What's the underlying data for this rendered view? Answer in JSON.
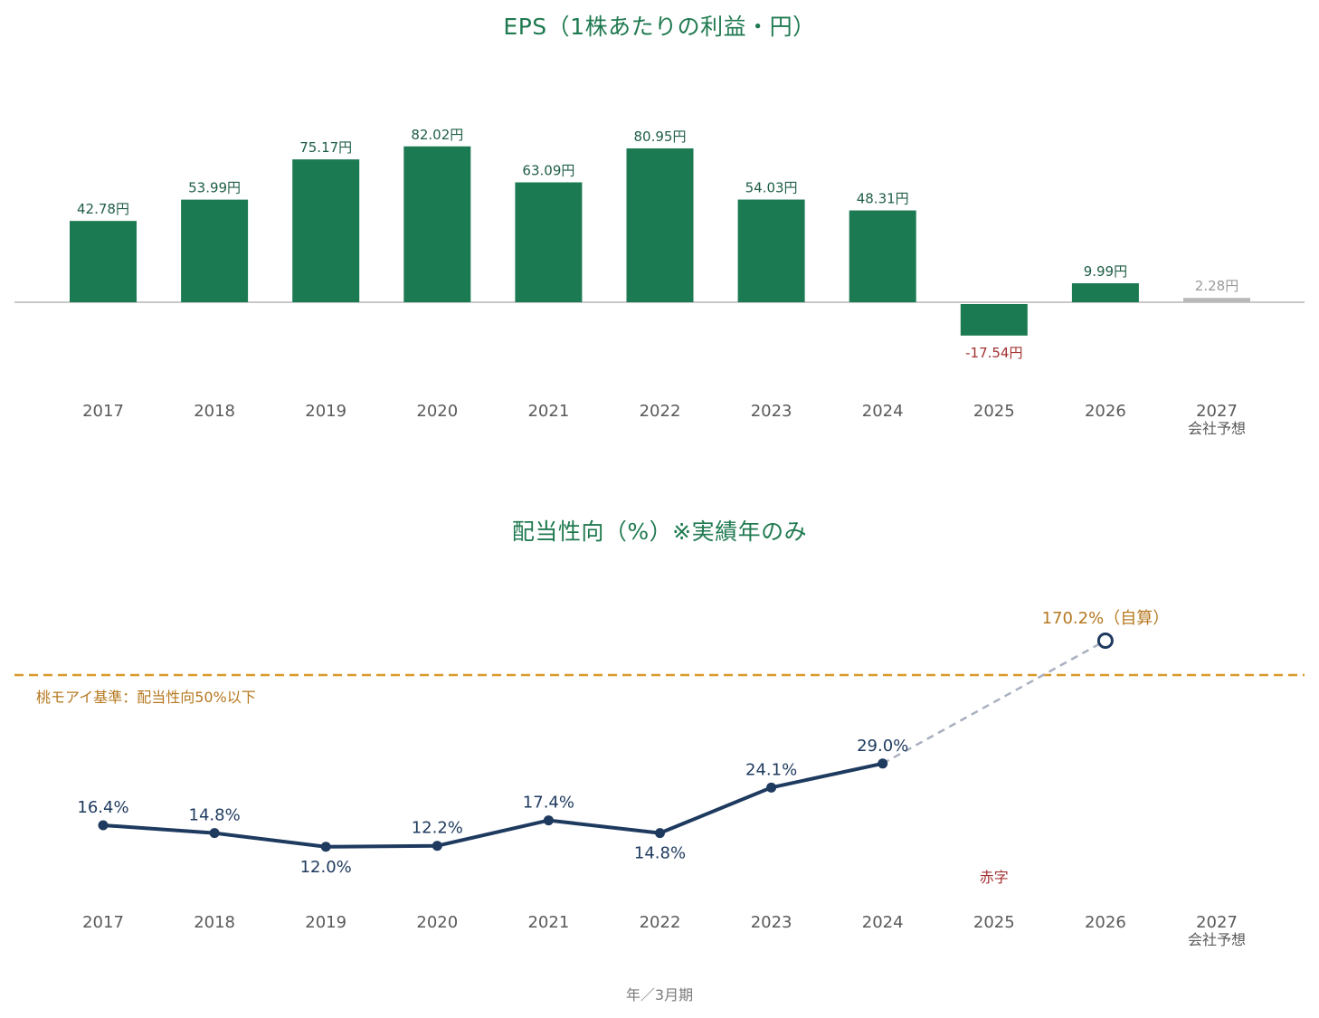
{
  "footer": "年／3月期",
  "colors": {
    "title": "#1f7a50",
    "bar": "#1c7a52",
    "bar_forecast": "#b9b9b9",
    "label_positive": "#1f5e45",
    "label_negative": "#a33232",
    "label_forecast": "#9a9a9a",
    "axis_text": "#5a5a5a",
    "line": "#1e3a5f",
    "line_projection": "#a9b0bf",
    "threshold": "#d99a2b",
    "threshold_text": "#b5781f",
    "deficit_text": "#a33232"
  },
  "chart_data": [
    {
      "type": "bar",
      "title": "EPS（1株あたりの利益・円）",
      "categories": [
        "2017",
        "2018",
        "2019",
        "2020",
        "2021",
        "2022",
        "2023",
        "2024",
        "2025",
        "2026",
        "2027"
      ],
      "category_sublabels": [
        "",
        "",
        "",
        "",
        "",
        "",
        "",
        "",
        "",
        "",
        "会社予想"
      ],
      "values": [
        42.78,
        53.99,
        75.17,
        82.02,
        63.09,
        80.95,
        54.03,
        48.31,
        -17.54,
        9.99,
        2.28
      ],
      "value_labels": [
        "42.78円",
        "53.99円",
        "75.17円",
        "82.02円",
        "63.09円",
        "80.95円",
        "54.03円",
        "48.31円",
        "-17.54円",
        "9.99円",
        "2.28円"
      ],
      "forecast_index": 10,
      "ylim": [
        -40,
        100
      ],
      "grid": false
    },
    {
      "type": "line",
      "title": "配当性向（%）※実績年のみ",
      "categories": [
        "2017",
        "2018",
        "2019",
        "2020",
        "2021",
        "2022",
        "2023",
        "2024",
        "2025",
        "2026",
        "2027"
      ],
      "category_sublabels": [
        "",
        "",
        "",
        "",
        "",
        "",
        "",
        "",
        "",
        "",
        "会社予想"
      ],
      "series": [
        {
          "values": [
            16.4,
            14.8,
            12.0,
            12.2,
            17.4,
            14.8,
            24.1,
            29.0,
            null,
            null,
            null
          ],
          "labels": [
            "16.4%",
            "14.8%",
            "12.0%",
            "12.2%",
            "17.4%",
            "14.8%",
            "24.1%",
            "29.0%",
            null,
            null,
            null
          ]
        }
      ],
      "outlier": {
        "category": "2026",
        "value": 170.2,
        "label": "170.2%（自算）"
      },
      "annotation_deficit": {
        "category": "2025",
        "label": "赤字"
      },
      "threshold": {
        "value": 50,
        "label": "桃モアイ基準：配当性向50%以下"
      },
      "grid": false
    }
  ]
}
